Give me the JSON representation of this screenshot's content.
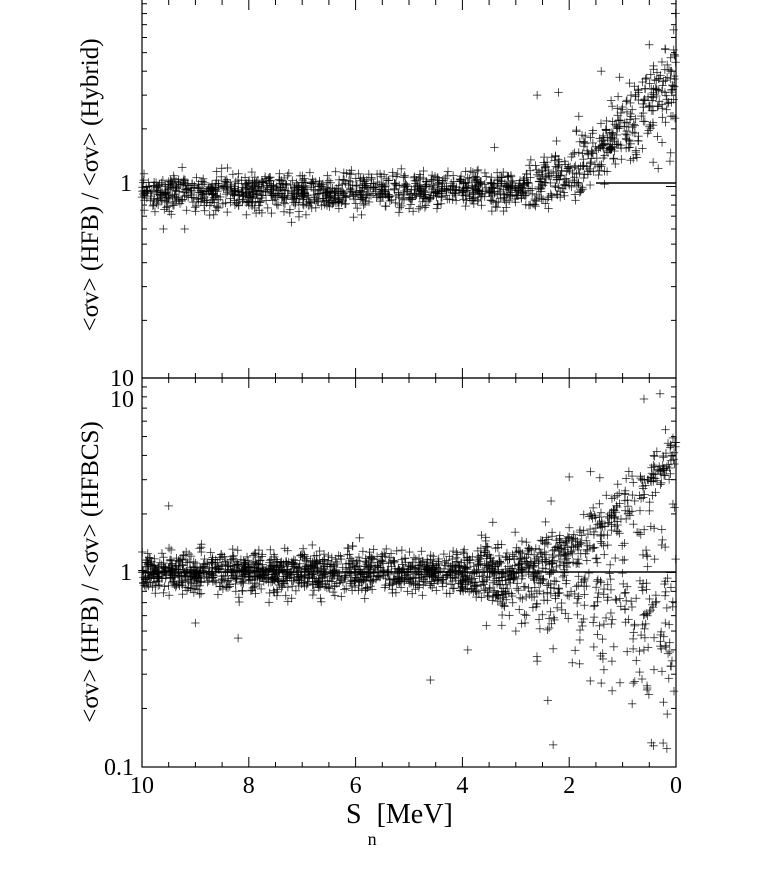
{
  "chart_data": [
    {
      "type": "scatter",
      "panel": "top",
      "ylabel": "<σv> (HFB) / <σv> (Hybrid)",
      "xlim": [
        10,
        0
      ],
      "x_inverted": true,
      "yscale": "log",
      "ylim": [
        0.1,
        10
      ],
      "y_tick_labels": [
        "1",
        "10"
      ],
      "reference_line": 1,
      "marker": "+",
      "points_shown": "approx. 1500 crosses",
      "series": [
        {
          "values": [
            [
              10.0,
              0.88
            ],
            [
              9.7,
              0.95
            ],
            [
              9.4,
              0.8
            ],
            [
              9.1,
              0.98
            ],
            [
              8.8,
              0.92
            ],
            [
              8.5,
              1.0
            ],
            [
              8.2,
              0.9
            ],
            [
              7.9,
              0.97
            ],
            [
              7.6,
              0.94
            ],
            [
              7.3,
              1.02
            ],
            [
              7.0,
              0.9
            ],
            [
              6.7,
              1.0
            ],
            [
              6.4,
              0.95
            ],
            [
              6.1,
              0.98
            ],
            [
              5.8,
              0.9
            ],
            [
              5.5,
              1.0
            ],
            [
              5.2,
              0.93
            ],
            [
              4.9,
              0.96
            ],
            [
              4.6,
              0.88
            ],
            [
              4.3,
              0.95
            ],
            [
              4.0,
              0.9
            ],
            [
              3.7,
              0.95
            ],
            [
              3.4,
              0.92
            ],
            [
              3.1,
              1.0
            ],
            [
              2.8,
              1.05
            ],
            [
              2.5,
              1.15
            ],
            [
              2.2,
              1.3
            ],
            [
              1.9,
              1.5
            ],
            [
              1.6,
              1.8
            ],
            [
              1.3,
              2.2
            ],
            [
              1.0,
              2.6
            ],
            [
              0.7,
              3.1
            ],
            [
              0.4,
              3.6
            ],
            [
              0.1,
              4.0
            ],
            [
              9.6,
              0.6
            ],
            [
              9.2,
              0.6
            ],
            [
              7.2,
              0.65
            ],
            [
              2.6,
              3.0
            ],
            [
              2.2,
              3.1
            ],
            [
              1.4,
              4.0
            ],
            [
              0.5,
              5.5
            ],
            [
              0.2,
              5.2
            ],
            [
              8.4,
              1.25
            ],
            [
              3.4,
              1.6
            ],
            [
              0.1,
              1.5
            ]
          ]
        }
      ]
    },
    {
      "type": "scatter",
      "panel": "bottom",
      "ylabel": "<σv> (HFB) / <σv> (HFBCS)",
      "xlabel": "S",
      "xlabel_subscript": "n",
      "xlabel_unit": "[MeV]",
      "x_ticks": [
        10,
        8,
        6,
        4,
        2,
        0
      ],
      "xlim": [
        10,
        0
      ],
      "x_inverted": true,
      "yscale": "log",
      "ylim": [
        0.1,
        10
      ],
      "y_tick_labels": [
        "0.1",
        "1",
        "10"
      ],
      "reference_line": 1,
      "marker": "+",
      "points_shown": "approx. 2000 crosses",
      "series": [
        {
          "values": [
            [
              10.0,
              1.0
            ],
            [
              9.6,
              1.05
            ],
            [
              9.2,
              0.95
            ],
            [
              8.8,
              1.1
            ],
            [
              8.4,
              1.0
            ],
            [
              8.0,
              0.92
            ],
            [
              7.6,
              1.05
            ],
            [
              7.2,
              1.0
            ],
            [
              6.8,
              0.95
            ],
            [
              6.4,
              1.08
            ],
            [
              6.0,
              1.0
            ],
            [
              5.6,
              0.95
            ],
            [
              5.2,
              1.05
            ],
            [
              4.8,
              0.98
            ],
            [
              4.4,
              0.92
            ],
            [
              4.0,
              1.0
            ],
            [
              3.6,
              0.9
            ],
            [
              3.2,
              0.95
            ],
            [
              2.8,
              1.2
            ],
            [
              2.4,
              1.4
            ],
            [
              2.0,
              1.7
            ],
            [
              1.6,
              2.0
            ],
            [
              1.2,
              2.4
            ],
            [
              0.8,
              2.9
            ],
            [
              0.4,
              3.5
            ],
            [
              0.1,
              4.5
            ],
            [
              3.0,
              0.5
            ],
            [
              2.6,
              0.35
            ],
            [
              2.4,
              0.22
            ],
            [
              2.3,
              0.13
            ],
            [
              1.8,
              0.45
            ],
            [
              1.2,
              0.35
            ],
            [
              0.6,
              0.4
            ],
            [
              0.2,
              0.55
            ],
            [
              9.5,
              2.2
            ],
            [
              9.0,
              0.55
            ],
            [
              8.2,
              0.46
            ],
            [
              0.6,
              7.8
            ],
            [
              0.3,
              8.3
            ],
            [
              2.0,
              3.1
            ],
            [
              1.6,
              3.3
            ],
            [
              1.4,
              0.27
            ],
            [
              0.8,
              0.27
            ],
            [
              3.9,
              0.4
            ],
            [
              4.6,
              0.28
            ]
          ]
        }
      ]
    }
  ]
}
